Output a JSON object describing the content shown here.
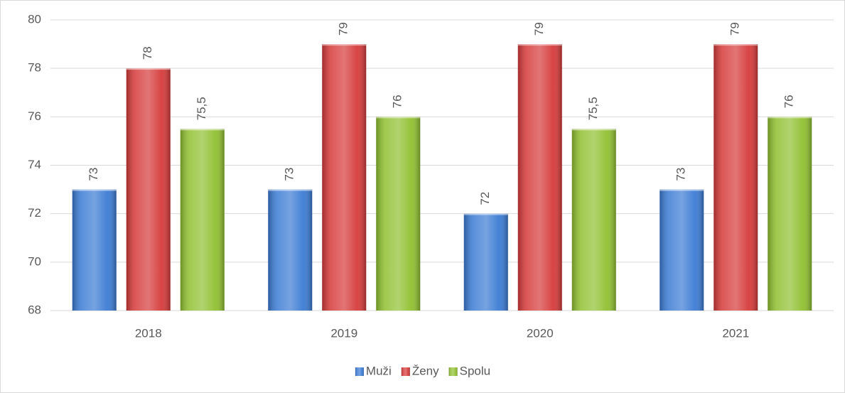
{
  "chart_data": {
    "type": "bar",
    "categories": [
      "2018",
      "2019",
      "2020",
      "2021"
    ],
    "series": [
      {
        "name": "Muži",
        "color": "#3b7bd4",
        "values": [
          73,
          73,
          72,
          73
        ]
      },
      {
        "name": "Ženy",
        "color": "#d63a3a",
        "values": [
          78,
          79,
          79,
          79
        ]
      },
      {
        "name": "Spolu",
        "color": "#90c030",
        "values": [
          75.5,
          76,
          75.5,
          76
        ],
        "value_labels": [
          "75,5",
          "76",
          "75,5",
          "76"
        ]
      }
    ],
    "ylim": [
      68,
      80
    ],
    "yticks": [
      68,
      70,
      72,
      74,
      76,
      78,
      80
    ],
    "grid": true,
    "legend": "bottom"
  }
}
